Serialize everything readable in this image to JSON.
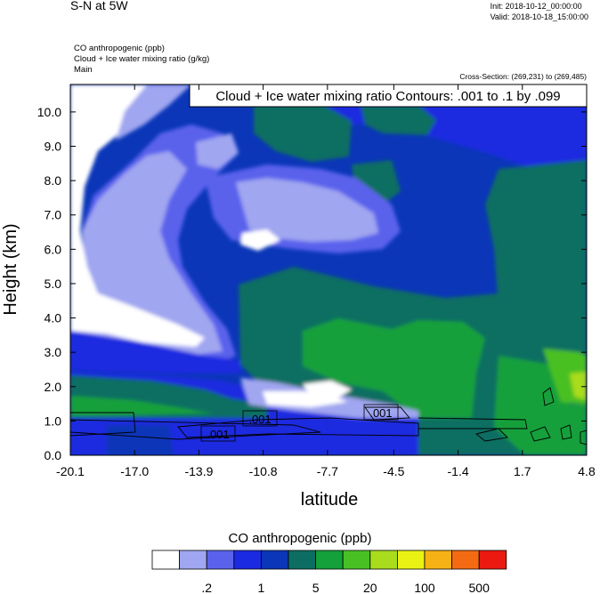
{
  "header": {
    "title": "S-N at 5W",
    "init": "Init: 2018-10-12_00:00:00",
    "valid": "Valid: 2018-10-18_15:00:00",
    "field1": "CO anthropogenic   (ppb)",
    "field2": "Cloud + Ice water mixing ratio   (g/kg)",
    "field3": "Main",
    "cross_section": "Cross-Section: (269,231) to (269,485)"
  },
  "chart_data": {
    "type": "contour",
    "title": "Cloud + Ice water mixing ratio Contours: .001 to .1 by .099",
    "xlabel": "latitude",
    "ylabel": "Height (km)",
    "x_ticks": [
      "-20.1",
      "-17.0",
      "-13.9",
      "-10.8",
      "-7.7",
      "-4.5",
      "-1.4",
      "1.7",
      "4.8"
    ],
    "x_tick_values": [
      -20.1,
      -17.0,
      -13.9,
      -10.8,
      -7.7,
      -4.5,
      -1.4,
      1.7,
      4.8
    ],
    "y_ticks": [
      "0.0",
      "1.0",
      "2.0",
      "3.0",
      "4.0",
      "5.0",
      "6.0",
      "7.0",
      "8.0",
      "9.0",
      "10.0"
    ],
    "y_tick_values": [
      0,
      1,
      2,
      3,
      4,
      5,
      6,
      7,
      8,
      9,
      10
    ],
    "xlim": [
      -20.1,
      4.8
    ],
    "ylim": [
      0,
      10.8
    ],
    "contour_labels": [
      {
        "text": ".001",
        "lat": -10.8,
        "height": 1.0
      },
      {
        "text": ".001",
        "lat": -4.5,
        "height": 1.2
      },
      {
        "text": ".001",
        "lat": -13.7,
        "height": 0.6
      }
    ],
    "colorbar": {
      "title": "CO anthropogenic  (ppb)",
      "colors": [
        "#ffffff",
        "#a0a6f0",
        "#5a62ec",
        "#1a2ae0",
        "#0b36b8",
        "#0c6e62",
        "#14a03a",
        "#48c024",
        "#a8dc1c",
        "#eaf214",
        "#f6b214",
        "#f46a12",
        "#ea1a10"
      ],
      "tick_labels": [
        ".2",
        "1",
        "5",
        "20",
        "100",
        "500"
      ]
    }
  }
}
